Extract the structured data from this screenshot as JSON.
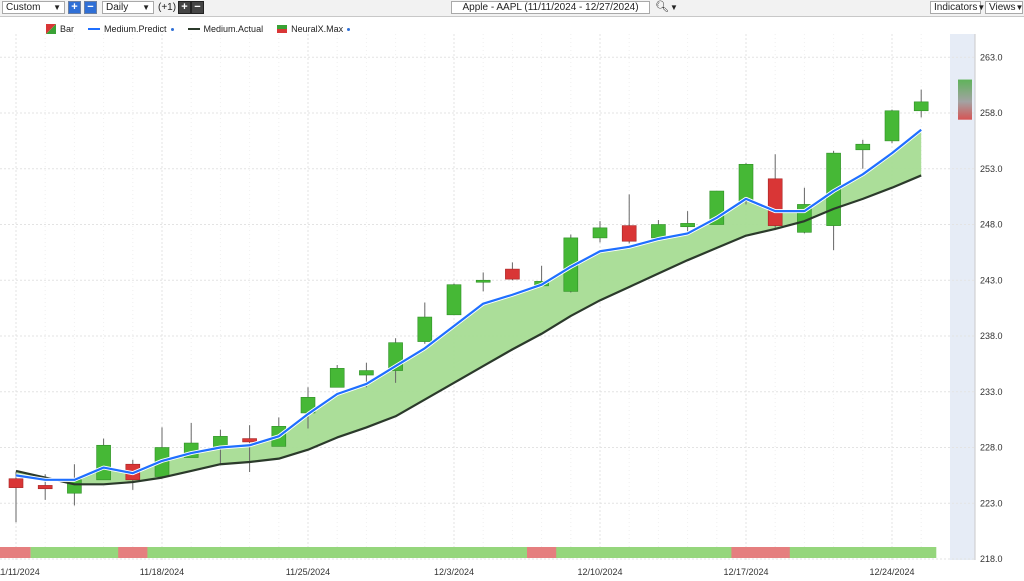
{
  "toolbar": {
    "preset": "Custom",
    "period": "Daily",
    "offset": "(+1)",
    "title": "Apple - AAPL (11/11/2024 - 12/27/2024)",
    "indicators": "Indicators",
    "views": "Views"
  },
  "legend": [
    {
      "label": "Bar",
      "color": "#3aa235"
    },
    {
      "label": "Medium.Predict",
      "color": "#1f6fff"
    },
    {
      "label": "Medium.Actual",
      "color": "#2b3a2b"
    },
    {
      "label": "NeuralX.Max",
      "color": "#3aa235"
    }
  ],
  "colors": {
    "up": "#46b836",
    "down": "#d93636",
    "predict": "#1f6fff",
    "actual": "#2b3a2b",
    "fill": "#a7dc93",
    "strip_up": "#95d67c",
    "strip_down": "#e57f7f",
    "forecast_band": "#e6ecf6"
  },
  "chart_data": {
    "type": "candlestick",
    "x_tick_labels": [
      "11/11/2024",
      "11/18/2024",
      "11/25/2024",
      "12/3/2024",
      "12/10/2024",
      "12/17/2024",
      "12/24/2024"
    ],
    "ylim": [
      218,
      265
    ],
    "y_ticks": [
      218,
      223,
      228,
      233,
      238,
      243,
      248,
      253,
      258,
      263
    ],
    "grid": true,
    "candles": [
      {
        "o": 225.2,
        "h": 225.8,
        "l": 221.3,
        "c": 224.4
      },
      {
        "o": 224.6,
        "h": 225.6,
        "l": 223.3,
        "c": 224.3
      },
      {
        "o": 223.9,
        "h": 226.5,
        "l": 222.8,
        "c": 225.1
      },
      {
        "o": 225.1,
        "h": 228.8,
        "l": 225.1,
        "c": 228.2
      },
      {
        "o": 226.5,
        "h": 226.9,
        "l": 224.2,
        "c": 225.1
      },
      {
        "o": 225.4,
        "h": 229.8,
        "l": 225.4,
        "c": 228.0
      },
      {
        "o": 227.1,
        "h": 230.2,
        "l": 227.1,
        "c": 228.4
      },
      {
        "o": 228.0,
        "h": 229.6,
        "l": 226.4,
        "c": 229.0
      },
      {
        "o": 228.8,
        "h": 230.0,
        "l": 225.8,
        "c": 228.5
      },
      {
        "o": 228.1,
        "h": 230.7,
        "l": 228.1,
        "c": 229.9
      },
      {
        "o": 231.1,
        "h": 233.4,
        "l": 229.7,
        "c": 232.5
      },
      {
        "o": 233.4,
        "h": 235.4,
        "l": 233.4,
        "c": 235.1
      },
      {
        "o": 234.5,
        "h": 235.6,
        "l": 233.4,
        "c": 234.9
      },
      {
        "o": 234.9,
        "h": 237.8,
        "l": 233.8,
        "c": 237.4
      },
      {
        "o": 237.5,
        "h": 241.0,
        "l": 237.3,
        "c": 239.7
      },
      {
        "o": 239.9,
        "h": 242.7,
        "l": 239.9,
        "c": 242.6
      },
      {
        "o": 242.9,
        "h": 243.7,
        "l": 242.0,
        "c": 243.0
      },
      {
        "o": 244.0,
        "h": 244.6,
        "l": 243.0,
        "c": 243.1
      },
      {
        "o": 242.5,
        "h": 244.3,
        "l": 242.5,
        "c": 242.9
      },
      {
        "o": 242.0,
        "h": 247.1,
        "l": 241.9,
        "c": 246.8
      },
      {
        "o": 246.8,
        "h": 248.3,
        "l": 246.4,
        "c": 247.7
      },
      {
        "o": 247.9,
        "h": 250.7,
        "l": 246.3,
        "c": 246.5
      },
      {
        "o": 246.8,
        "h": 248.4,
        "l": 246.6,
        "c": 248.0
      },
      {
        "o": 247.8,
        "h": 249.2,
        "l": 247.3,
        "c": 248.1
      },
      {
        "o": 248.0,
        "h": 251.0,
        "l": 248.0,
        "c": 251.0
      },
      {
        "o": 250.1,
        "h": 253.5,
        "l": 249.8,
        "c": 253.4
      },
      {
        "o": 252.1,
        "h": 254.3,
        "l": 247.7,
        "c": 247.9
      },
      {
        "o": 247.3,
        "h": 251.3,
        "l": 247.2,
        "c": 249.8
      },
      {
        "o": 247.9,
        "h": 254.6,
        "l": 245.7,
        "c": 254.4
      },
      {
        "o": 254.7,
        "h": 255.6,
        "l": 253.0,
        "c": 255.2
      },
      {
        "o": 255.5,
        "h": 258.3,
        "l": 255.3,
        "c": 258.2
      },
      {
        "o": 258.2,
        "h": 260.1,
        "l": 257.6,
        "c": 259.0
      }
    ],
    "medium_predict": [
      225.5,
      225.1,
      225.1,
      226.2,
      225.7,
      226.8,
      227.5,
      228.0,
      228.2,
      229.0,
      231.0,
      232.8,
      233.7,
      235.3,
      236.9,
      238.9,
      240.9,
      241.7,
      242.6,
      244.2,
      245.6,
      246.0,
      246.7,
      247.2,
      248.6,
      250.3,
      249.2,
      249.2,
      251.0,
      252.5,
      254.4,
      256.5
    ],
    "medium_actual": [
      225.9,
      225.3,
      224.7,
      224.7,
      224.9,
      225.3,
      225.9,
      226.5,
      226.7,
      227.0,
      227.8,
      228.9,
      229.8,
      230.8,
      232.3,
      233.8,
      235.3,
      236.8,
      238.2,
      239.8,
      241.2,
      242.4,
      243.6,
      244.8,
      245.9,
      247.0,
      247.6,
      248.3,
      249.4,
      250.3,
      251.3,
      252.4
    ],
    "neuralx_max": {
      "top": 261.0,
      "bottom": 257.4
    },
    "signal_strip": [
      "down",
      "up",
      "up",
      "up",
      "down",
      "up",
      "up",
      "up",
      "up",
      "up",
      "up",
      "up",
      "up",
      "up",
      "up",
      "up",
      "up",
      "up",
      "down",
      "up",
      "up",
      "up",
      "up",
      "up",
      "up",
      "down",
      "down",
      "up",
      "up",
      "up",
      "up",
      "up"
    ]
  }
}
